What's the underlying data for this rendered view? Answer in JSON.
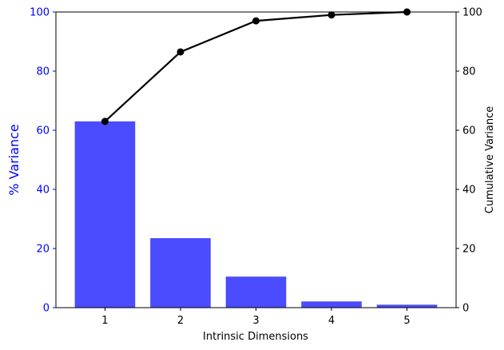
{
  "chart_data": {
    "type": "bar",
    "categories": [
      "1",
      "2",
      "3",
      "4",
      "5"
    ],
    "series": [
      {
        "type": "bar",
        "axis": "left",
        "values": [
          63,
          23.5,
          10.5,
          2.1,
          1.0
        ]
      },
      {
        "type": "line",
        "axis": "right",
        "values": [
          63,
          86.5,
          97,
          99,
          100
        ]
      }
    ],
    "xlabel": "Intrinsic Dimensions",
    "ylabel_left": "% Variance",
    "ylabel_right": "Cumulative Variance",
    "ylim_left": [
      0,
      100
    ],
    "ylim_right": [
      0,
      100
    ],
    "yticks_left": [
      "0",
      "20",
      "40",
      "60",
      "80",
      "100"
    ],
    "yticks_right": [
      "0",
      "20",
      "40",
      "60",
      "80",
      "100"
    ],
    "grid": false,
    "colors": {
      "bar": "#4b4bff",
      "left_axis": "#0000ff",
      "line": "#000000"
    }
  }
}
